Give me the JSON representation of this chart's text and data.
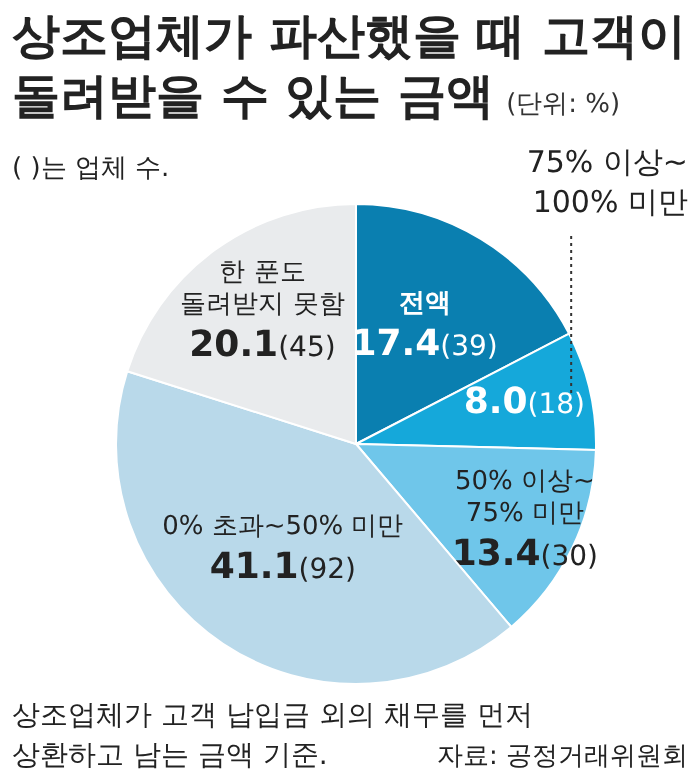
{
  "chart_data": {
    "type": "pie",
    "title": "상조업체가 파산했을 때 고객이\n돌려받을 수 있는 금액",
    "subtitle": "(단위: %)",
    "categories": [
      "전액",
      "75% 이상~\n100% 미만",
      "50% 이상~\n75% 미만",
      "0% 초과~50% 미만",
      "한 푼도\n돌려받지 못함"
    ],
    "values": [
      17.4,
      8.0,
      13.4,
      41.1,
      20.1
    ],
    "value_labels": [
      "17.4(39)",
      "8.0(18)",
      "13.4(30)",
      "41.1(92)",
      "20.1(45)"
    ],
    "colors": [
      "#0a7fb0",
      "#15a8da",
      "#6fc6ea",
      "#b9d9ea",
      "#e9ebed"
    ],
    "annotations": [
      "( )는 업체 수.",
      "상조업체가 고객 납입금 외의 채무를 먼저\n상환하고 남는 금액 기준.",
      "자료: 공정거래위원회"
    ]
  }
}
